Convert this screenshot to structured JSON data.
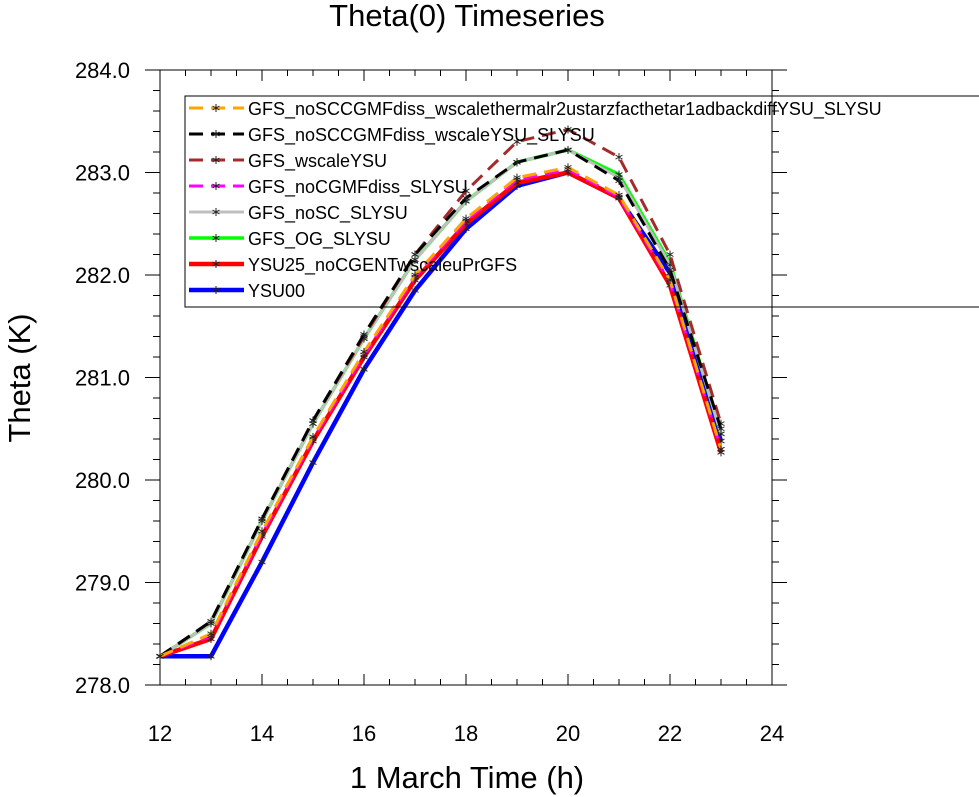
{
  "chart_data": {
    "type": "line",
    "title": "Theta(0) Timeseries",
    "xlabel": "1 March Time (h)",
    "ylabel": "Theta (K)",
    "xlim": [
      12,
      24
    ],
    "ylim": [
      278.0,
      284.0
    ],
    "xticks": [
      "12",
      "14",
      "16",
      "18",
      "20",
      "22",
      "24"
    ],
    "yticks": [
      "278.0",
      "279.0",
      "280.0",
      "281.0",
      "282.0",
      "283.0",
      "284.0"
    ],
    "x": [
      12,
      13,
      14,
      15,
      16,
      17,
      18,
      19,
      20,
      21,
      22,
      23
    ],
    "legend_position": "top-left inside plot",
    "series": [
      {
        "name": "GFS_noSCCGMFdiss_wscalethermalr2ustarzfacthetar1adbackdiffYSU_SLYSU",
        "color": "#ffa500",
        "dash": "dashed",
        "values": [
          278.28,
          278.5,
          279.5,
          280.42,
          281.25,
          282.0,
          282.55,
          282.95,
          283.05,
          282.78,
          281.95,
          280.3
        ]
      },
      {
        "name": "GFS_noSCCGMFdiss_wscaleYSU_SLYSU",
        "color": "#000000",
        "dash": "dashed",
        "values": [
          278.28,
          278.62,
          279.62,
          280.58,
          281.42,
          282.2,
          282.75,
          283.1,
          283.22,
          282.92,
          282.05,
          280.5
        ]
      },
      {
        "name": "GFS_wscaleYSU",
        "color": "#a52a2a",
        "dash": "dashed",
        "values": [
          278.28,
          278.62,
          279.62,
          280.58,
          281.4,
          282.2,
          282.82,
          283.3,
          283.42,
          283.15,
          282.2,
          280.55
        ]
      },
      {
        "name": "GFS_noCGMFdiss_SLYSU",
        "color": "#ff00ff",
        "dash": "dashed",
        "values": [
          278.28,
          278.48,
          279.47,
          280.4,
          281.22,
          281.98,
          282.53,
          282.93,
          283.03,
          282.76,
          281.93,
          280.3
        ]
      },
      {
        "name": "GFS_noSC_SLYSU",
        "color": "#bfbfbf",
        "dash": "solid",
        "values": [
          278.28,
          278.6,
          279.6,
          280.55,
          281.38,
          282.15,
          282.72,
          283.1,
          283.22,
          282.95,
          282.1,
          280.45
        ]
      },
      {
        "name": "GFS_OG_SLYSU",
        "color": "#00ff00",
        "dash": "solid",
        "values": [
          278.28,
          278.6,
          279.6,
          280.55,
          281.38,
          282.15,
          282.72,
          283.1,
          283.22,
          282.98,
          282.12,
          280.45
        ]
      },
      {
        "name": "YSU25_noCGENTwscaleuPrGFS",
        "color": "#ff0000",
        "dash": "solid",
        "values": [
          278.28,
          278.45,
          279.45,
          280.38,
          281.2,
          281.95,
          282.5,
          282.9,
          283.0,
          282.75,
          281.9,
          280.27
        ]
      },
      {
        "name": "YSU00",
        "color": "#0000ff",
        "dash": "solid",
        "values": [
          278.28,
          278.28,
          279.2,
          280.17,
          281.08,
          281.85,
          282.45,
          282.87,
          283.0,
          282.75,
          282.02,
          280.38
        ]
      }
    ]
  }
}
